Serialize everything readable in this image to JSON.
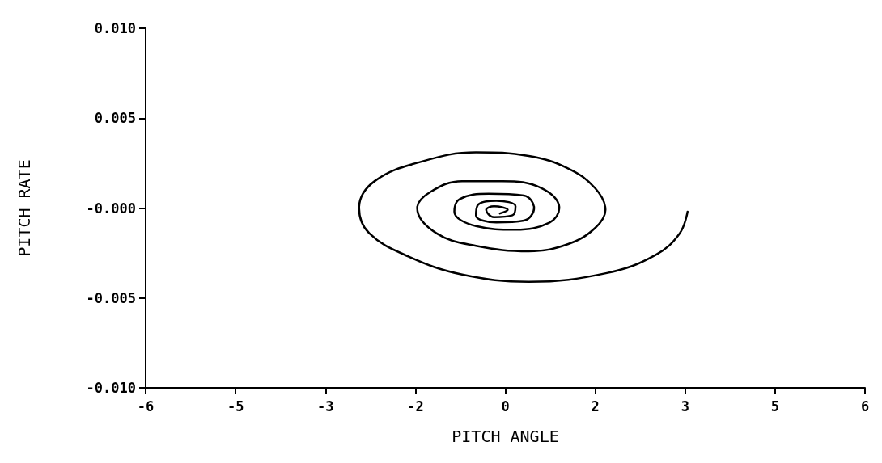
{
  "chart_data": {
    "type": "line",
    "xlabel": "PITCH ANGLE",
    "ylabel": "PITCH RATE",
    "xlim": [
      -6,
      6
    ],
    "xticks": [
      {
        "value": -6,
        "label": "-6"
      },
      {
        "value": -4.5,
        "label": "-5"
      },
      {
        "value": -3,
        "label": "-3"
      },
      {
        "value": -1.5,
        "label": "-2"
      },
      {
        "value": 0,
        "label": "0"
      },
      {
        "value": 1.5,
        "label": "2"
      },
      {
        "value": 3,
        "label": "3"
      },
      {
        "value": 4.5,
        "label": "5"
      },
      {
        "value": 6,
        "label": "6"
      }
    ],
    "ylim": [
      -0.01,
      0.01
    ],
    "yticks": [
      {
        "value": -0.01,
        "label": "-0.010"
      },
      {
        "value": -0.005,
        "label": "-0.005"
      },
      {
        "value": 0,
        "label": "-0.000"
      },
      {
        "value": 0.005,
        "label": "0.005"
      },
      {
        "value": 0.01,
        "label": "0.010"
      }
    ],
    "grid": false,
    "marker": "none",
    "line_style": "solid",
    "series": [
      {
        "color": "#000000",
        "x": [
          3.04,
          2.91,
          2.51,
          1.71,
          0.39,
          -0.72,
          -1.61,
          -2.27,
          -2.44,
          -2.18,
          -1.38,
          -0.49,
          0.39,
          1.05,
          1.5,
          1.67,
          1.5,
          1.05,
          0.39,
          -0.49,
          -1.15,
          -1.47,
          -1.25,
          -0.72,
          -0.05,
          0.61,
          0.9,
          0.74,
          0.17,
          -0.49,
          -0.85,
          -0.76,
          -0.28,
          0.31,
          0.48,
          0.31,
          -0.15,
          -0.49,
          -0.45,
          -0.15,
          0.17,
          0.12,
          -0.19,
          -0.32,
          -0.19,
          0.04,
          -0.09
        ],
        "values": [
          -0.0002,
          -0.0014,
          -0.0026,
          -0.0036,
          -0.0041,
          -0.0037,
          -0.0027,
          -0.0014,
          0,
          0.0015,
          0.0026,
          0.0031,
          0.0029,
          0.0022,
          0.0011,
          -0.0001,
          -0.0011,
          -0.002,
          -0.0024,
          -0.0021,
          -0.0014,
          0,
          0.0009,
          0.0015,
          0.0015,
          0.0011,
          0,
          -0.0008,
          -0.0012,
          -0.001,
          -0.0002,
          0.0005,
          0.0008,
          0.0007,
          0,
          -0.0007,
          -0.0008,
          -0.0004,
          0.0002,
          0.0004,
          0.0001,
          -0.0004,
          -0.0005,
          -0.0001,
          0.0001,
          -0.0001,
          -0.0003
        ]
      }
    ]
  }
}
